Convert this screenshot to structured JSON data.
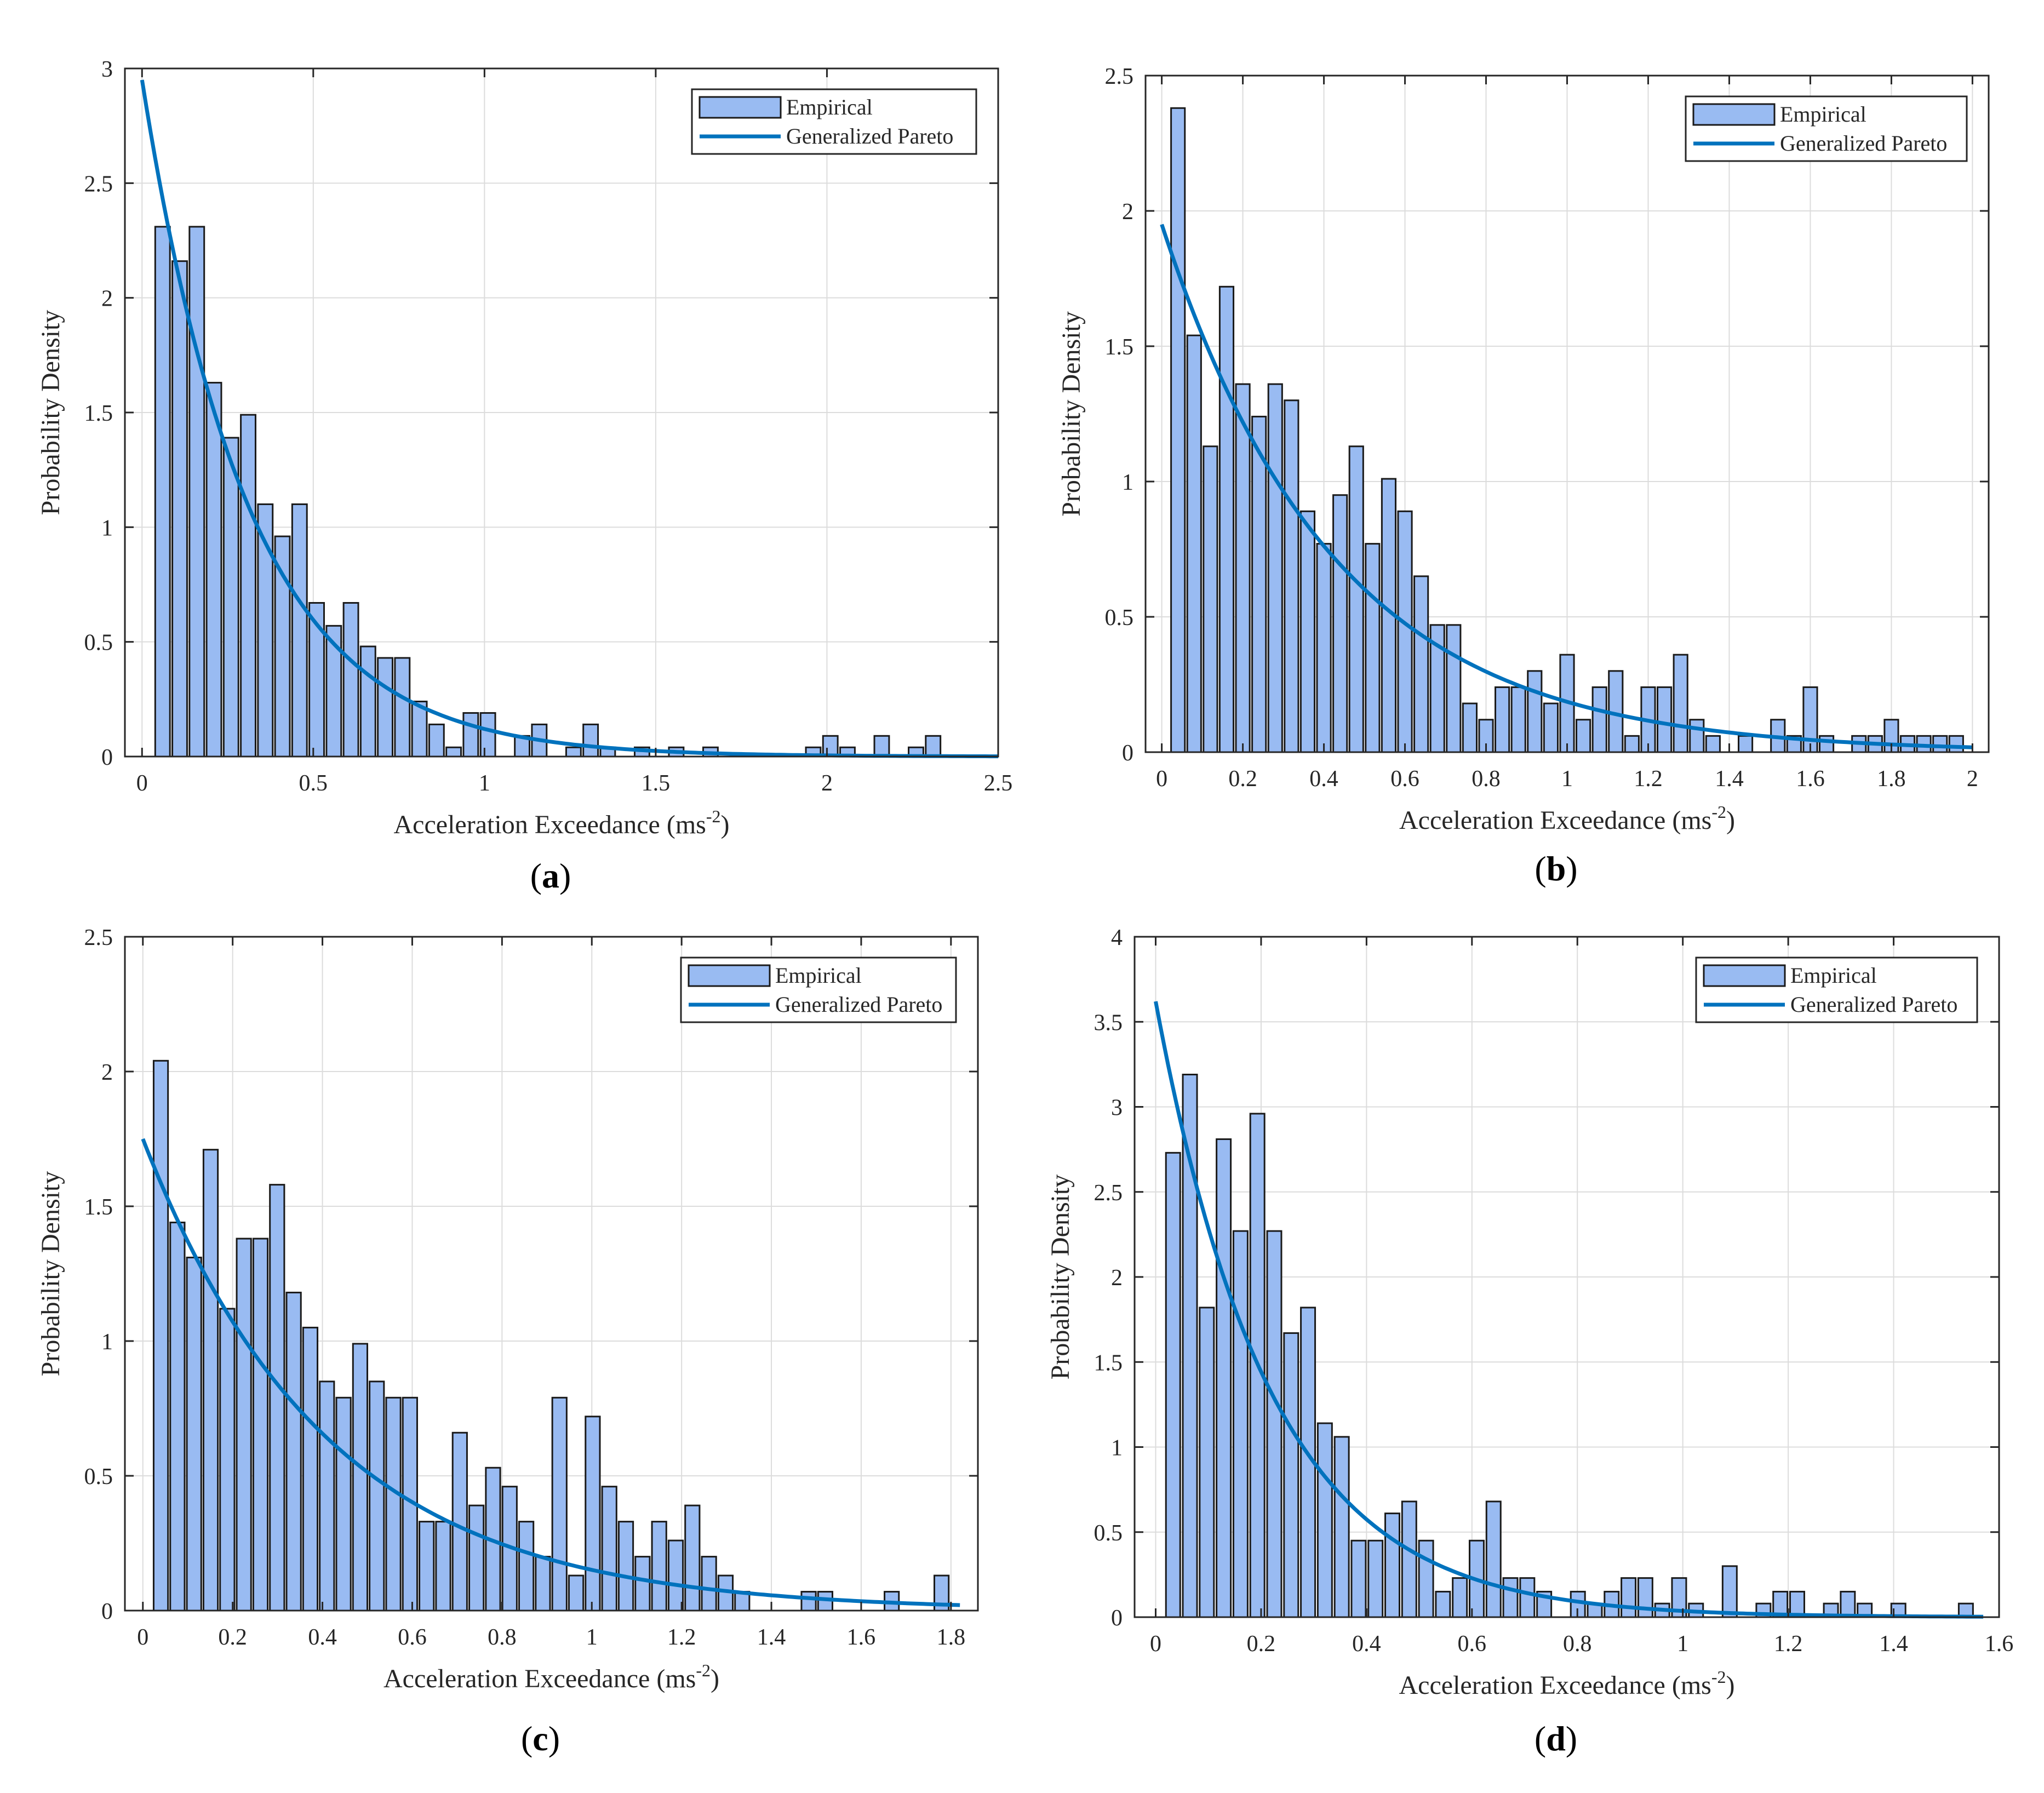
{
  "colors": {
    "bar_fill": "#99bbf2",
    "bar_stroke": "#1a1a1a",
    "curve": "#0072bd",
    "grid": "#dcdcdc",
    "axis": "#262626"
  },
  "legend": {
    "empirical": "Empirical",
    "curve": "Generalized Pareto"
  },
  "chart_data": [
    {
      "panel": "a",
      "caption_open": "(",
      "caption_letter": "a",
      "caption_close": ")",
      "type": "bar",
      "xlabel_main": "Acceleration Exceedance (ms",
      "xlabel_sup": "-2",
      "xlabel_close": ")",
      "ylabel": "Probability Density",
      "xlim": [
        -0.05,
        2.5
      ],
      "ylim": [
        0,
        3
      ],
      "xticks": [
        0,
        0.5,
        1,
        1.5,
        2,
        2.5
      ],
      "xtick_labels": [
        "0",
        "0.5",
        "1",
        "1.5",
        "2",
        "2.5"
      ],
      "yticks": [
        0,
        0.5,
        1,
        1.5,
        2,
        2.5,
        3
      ],
      "ytick_labels": [
        "0",
        "0.5",
        "1",
        "1.5",
        "2",
        "2.5",
        "3"
      ],
      "grid": true,
      "legend_position": "top-right",
      "bar_width": 0.043,
      "bin_centers": [
        0.06,
        0.11,
        0.16,
        0.21,
        0.26,
        0.31,
        0.36,
        0.41,
        0.46,
        0.51,
        0.56,
        0.61,
        0.66,
        0.71,
        0.76,
        0.81,
        0.86,
        0.91,
        0.96,
        1.01,
        1.06,
        1.11,
        1.16,
        1.21,
        1.26,
        1.31,
        1.36,
        1.41,
        1.46,
        1.51,
        1.56,
        1.61,
        1.66,
        1.71,
        1.76,
        1.81,
        1.86,
        1.91,
        1.96,
        2.01,
        2.06,
        2.11,
        2.16,
        2.21,
        2.26,
        2.31,
        2.36
      ],
      "values": [
        2.31,
        2.16,
        2.31,
        1.63,
        1.39,
        1.49,
        1.1,
        0.96,
        1.1,
        0.67,
        0.57,
        0.67,
        0.48,
        0.43,
        0.43,
        0.24,
        0.14,
        0.04,
        0.19,
        0.19,
        0,
        0.09,
        0.14,
        0,
        0.04,
        0.14,
        0.04,
        0,
        0.04,
        0,
        0.04,
        0,
        0.04,
        0,
        0,
        0,
        0,
        0,
        0.04,
        0.09,
        0.04,
        0,
        0.09,
        0,
        0.04,
        0.09,
        0
      ],
      "curve": {
        "model": "exponential-like generalized Pareto fit",
        "x_start": 0.0,
        "x_end": 2.5,
        "y0": 2.95,
        "scale_rate": 3.2
      }
    },
    {
      "panel": "b",
      "caption_open": "(",
      "caption_letter": "b",
      "caption_close": ")",
      "type": "bar",
      "xlabel_main": "Acceleration Exceedance (ms",
      "xlabel_sup": "-2",
      "xlabel_close": ")",
      "ylabel": "Probability Density",
      "xlim": [
        -0.04,
        2.04
      ],
      "ylim": [
        0,
        2.5
      ],
      "xticks": [
        0,
        0.2,
        0.4,
        0.6,
        0.8,
        1,
        1.2,
        1.4,
        1.6,
        1.8,
        2
      ],
      "xtick_labels": [
        "0",
        "0.2",
        "0.4",
        "0.6",
        "0.8",
        "1",
        "1.2",
        "1.4",
        "1.6",
        "1.8",
        "2"
      ],
      "yticks": [
        0,
        0.5,
        1,
        1.5,
        2,
        2.5
      ],
      "ytick_labels": [
        "0",
        "0.5",
        "1",
        "1.5",
        "2",
        "2.5"
      ],
      "grid": true,
      "legend_position": "top-right",
      "bar_width": 0.034,
      "bin_centers": [
        0.04,
        0.08,
        0.12,
        0.16,
        0.2,
        0.24,
        0.28,
        0.32,
        0.36,
        0.4,
        0.44,
        0.48,
        0.52,
        0.56,
        0.6,
        0.64,
        0.68,
        0.72,
        0.76,
        0.8,
        0.84,
        0.88,
        0.92,
        0.96,
        1.0,
        1.04,
        1.08,
        1.12,
        1.16,
        1.2,
        1.24,
        1.28,
        1.32,
        1.36,
        1.4,
        1.44,
        1.48,
        1.52,
        1.56,
        1.6,
        1.64,
        1.68,
        1.72,
        1.76,
        1.8,
        1.84,
        1.88,
        1.92,
        1.96
      ],
      "values": [
        2.38,
        1.54,
        1.13,
        1.72,
        1.36,
        1.24,
        1.36,
        1.3,
        0.89,
        0.77,
        0.95,
        1.13,
        0.77,
        1.01,
        0.89,
        0.65,
        0.47,
        0.47,
        0.18,
        0.12,
        0.24,
        0.24,
        0.3,
        0.18,
        0.36,
        0.12,
        0.24,
        0.3,
        0.06,
        0.24,
        0.24,
        0.36,
        0.12,
        0.06,
        0,
        0.06,
        0,
        0.12,
        0.06,
        0.24,
        0.06,
        0,
        0.06,
        0.06,
        0.12,
        0.06,
        0.06,
        0.06,
        0.06
      ],
      "curve": {
        "model": "generalized Pareto fit",
        "x_start": 0.0,
        "x_end": 2.0,
        "y0": 1.95,
        "scale_rate": 2.35
      }
    },
    {
      "panel": "c",
      "caption_open": "(",
      "caption_letter": "c",
      "caption_close": ")",
      "type": "bar",
      "xlabel_main": "Acceleration Exceedance (ms",
      "xlabel_sup": "-2",
      "xlabel_close": ")",
      "ylabel": "Probability Density",
      "xlim": [
        -0.04,
        1.86
      ],
      "ylim": [
        0,
        2.5
      ],
      "xticks": [
        0,
        0.2,
        0.4,
        0.6,
        0.8,
        1,
        1.2,
        1.4,
        1.6,
        1.8
      ],
      "xtick_labels": [
        "0",
        "0.2",
        "0.4",
        "0.6",
        "0.8",
        "1",
        "1.2",
        "1.4",
        "1.6",
        "1.8"
      ],
      "yticks": [
        0,
        0.5,
        1,
        1.5,
        2,
        2.5
      ],
      "ytick_labels": [
        "0",
        "0.5",
        "1",
        "1.5",
        "2",
        "2.5"
      ],
      "grid": true,
      "legend_position": "top-right",
      "bar_width": 0.032,
      "bin_centers": [
        0.04,
        0.077,
        0.114,
        0.151,
        0.188,
        0.225,
        0.262,
        0.299,
        0.336,
        0.373,
        0.41,
        0.447,
        0.484,
        0.521,
        0.558,
        0.595,
        0.632,
        0.669,
        0.706,
        0.743,
        0.78,
        0.817,
        0.854,
        0.891,
        0.928,
        0.965,
        1.002,
        1.039,
        1.076,
        1.113,
        1.15,
        1.187,
        1.224,
        1.261,
        1.298,
        1.335,
        1.372,
        1.409,
        1.446,
        1.483,
        1.52,
        1.557,
        1.594,
        1.631,
        1.668,
        1.705,
        1.742,
        1.779
      ],
      "values": [
        2.04,
        1.44,
        1.31,
        1.71,
        1.12,
        1.38,
        1.38,
        1.58,
        1.18,
        1.05,
        0.85,
        0.79,
        0.99,
        0.85,
        0.79,
        0.79,
        0.33,
        0.33,
        0.66,
        0.39,
        0.53,
        0.46,
        0.33,
        0.2,
        0.79,
        0.13,
        0.72,
        0.46,
        0.33,
        0.2,
        0.33,
        0.26,
        0.39,
        0.2,
        0.13,
        0.07,
        0,
        0,
        0,
        0.07,
        0.07,
        0,
        0,
        0,
        0.07,
        0,
        0,
        0.13
      ],
      "curve": {
        "model": "generalized Pareto fit",
        "x_start": 0.0,
        "x_end": 1.82,
        "y0": 1.75,
        "scale_rate": 2.45
      }
    },
    {
      "panel": "d",
      "caption_open": "(",
      "caption_letter": "d",
      "caption_close": ")",
      "type": "bar",
      "xlabel_main": "Acceleration Exceedance (ms",
      "xlabel_sup": "-2",
      "xlabel_close": ")",
      "ylabel": "Probability Density",
      "xlim": [
        -0.04,
        1.6
      ],
      "ylim": [
        0,
        4
      ],
      "xticks": [
        0,
        0.2,
        0.4,
        0.6,
        0.8,
        1,
        1.2,
        1.4,
        1.6
      ],
      "xtick_labels": [
        "0",
        "0.2",
        "0.4",
        "0.6",
        "0.8",
        "1",
        "1.2",
        "1.4",
        "1.6"
      ],
      "yticks": [
        0,
        0.5,
        1,
        1.5,
        2,
        2.5,
        3,
        3.5,
        4
      ],
      "ytick_labels": [
        "0",
        "0.5",
        "1",
        "1.5",
        "2",
        "2.5",
        "3",
        "3.5",
        "4"
      ],
      "grid": true,
      "legend_position": "top-right",
      "bar_width": 0.027,
      "bin_centers": [
        0.033,
        0.065,
        0.097,
        0.129,
        0.161,
        0.193,
        0.225,
        0.257,
        0.289,
        0.321,
        0.353,
        0.385,
        0.417,
        0.449,
        0.481,
        0.513,
        0.545,
        0.577,
        0.609,
        0.641,
        0.673,
        0.705,
        0.737,
        0.769,
        0.801,
        0.833,
        0.865,
        0.897,
        0.929,
        0.961,
        0.993,
        1.025,
        1.057,
        1.089,
        1.121,
        1.153,
        1.185,
        1.217,
        1.249,
        1.281,
        1.313,
        1.345,
        1.377,
        1.409,
        1.441,
        1.473,
        1.505,
        1.537
      ],
      "values": [
        2.73,
        3.19,
        1.82,
        2.81,
        2.27,
        2.96,
        2.27,
        1.67,
        1.82,
        1.14,
        1.06,
        0.45,
        0.45,
        0.61,
        0.68,
        0.45,
        0.15,
        0.23,
        0.45,
        0.68,
        0.23,
        0.23,
        0.15,
        0,
        0.15,
        0.08,
        0.15,
        0.23,
        0.23,
        0.08,
        0.23,
        0.08,
        0,
        0.3,
        0,
        0.08,
        0.15,
        0.15,
        0,
        0.08,
        0.15,
        0.08,
        0,
        0.08,
        0,
        0,
        0,
        0.08
      ],
      "curve": {
        "model": "generalized Pareto fit",
        "x_start": 0.0,
        "x_end": 1.57,
        "y0": 3.62,
        "scale_rate": 4.6
      }
    }
  ]
}
